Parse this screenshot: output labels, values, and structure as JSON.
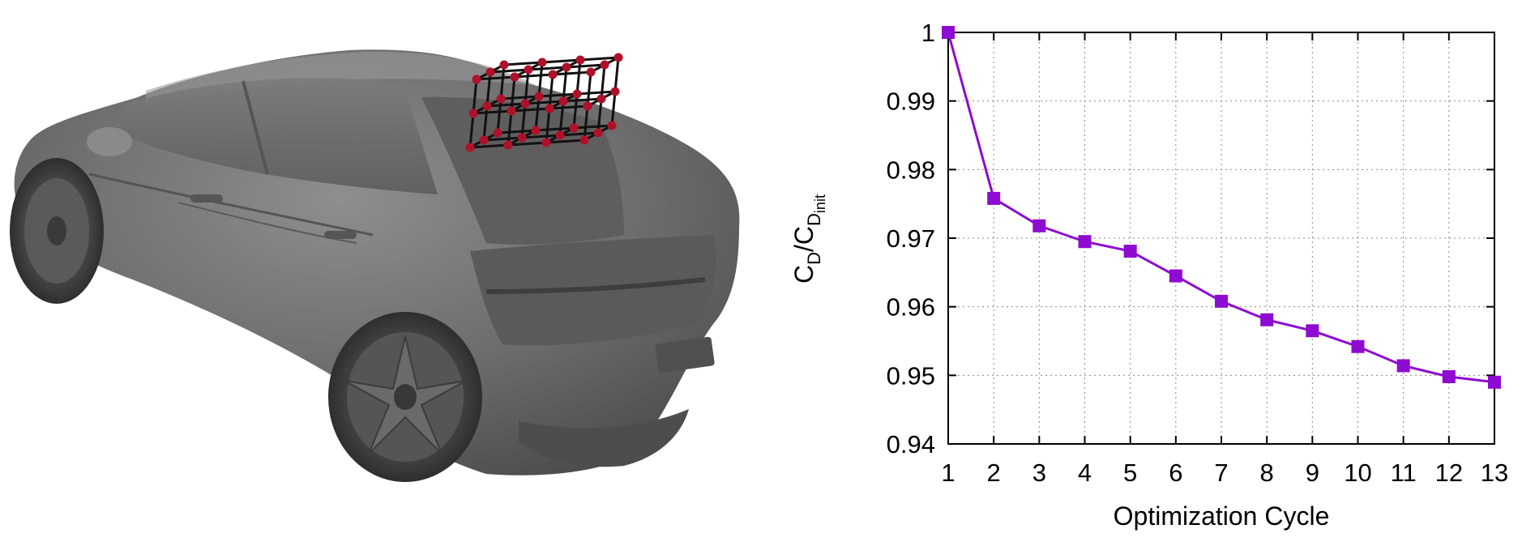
{
  "colors": {
    "series": "#8e0bd1",
    "grid": "#8a8a8a",
    "axis": "#000000",
    "car_body": "#6b6b6b",
    "lattice_line": "#111111",
    "lattice_node": "#b0112a"
  },
  "car_figure": {
    "icon": "car-with-ffd-control-lattice"
  },
  "chart_data": {
    "type": "line",
    "xlabel": "Optimization Cycle",
    "ylabel": {
      "base": "C",
      "sub1": "D",
      "slash": "/",
      "base2": "C",
      "sub2": "D",
      "subsub2": "init"
    },
    "x": [
      1,
      2,
      3,
      4,
      5,
      6,
      7,
      8,
      9,
      10,
      11,
      12,
      13
    ],
    "xticks": [
      "1",
      "2",
      "3",
      "4",
      "5",
      "6",
      "7",
      "8",
      "9",
      "10",
      "11",
      "12",
      "13"
    ],
    "yticks": [
      "0.94",
      "0.95",
      "0.96",
      "0.97",
      "0.98",
      "0.99",
      "1"
    ],
    "ytick_values": [
      0.94,
      0.95,
      0.96,
      0.97,
      0.98,
      0.99,
      1.0
    ],
    "xlim": [
      1,
      13
    ],
    "ylim": [
      0.94,
      1.0
    ],
    "grid": true,
    "marker": "square",
    "series": [
      {
        "values": [
          1.0,
          0.9758,
          0.9718,
          0.9695,
          0.9681,
          0.9645,
          0.9608,
          0.9581,
          0.9565,
          0.9542,
          0.9514,
          0.9498,
          0.949
        ]
      }
    ]
  }
}
